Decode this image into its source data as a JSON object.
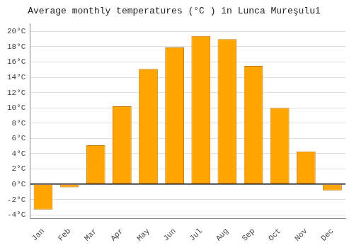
{
  "chart_data": {
    "type": "bar",
    "title": "Average monthly temperatures (°C ) in Lunca Mureşului",
    "categories": [
      "Jan",
      "Feb",
      "Mar",
      "Apr",
      "May",
      "Jun",
      "Jul",
      "Aug",
      "Sep",
      "Oct",
      "Nov",
      "Dec"
    ],
    "values": [
      -3.3,
      -0.4,
      5.1,
      10.2,
      15.1,
      17.9,
      19.4,
      19.0,
      15.5,
      10.0,
      4.3,
      -0.8
    ],
    "color": "#FFA500",
    "ylim": [
      -4.5,
      21
    ],
    "yticks": [
      {
        "value": -4,
        "label": "-4°C"
      },
      {
        "value": -2,
        "label": "-2°C"
      },
      {
        "value": 0,
        "label": "0°C"
      },
      {
        "value": 2,
        "label": "2°C"
      },
      {
        "value": 4,
        "label": "4°C"
      },
      {
        "value": 6,
        "label": "6°C"
      },
      {
        "value": 8,
        "label": "8°C"
      },
      {
        "value": 10,
        "label": "10°C"
      },
      {
        "value": 12,
        "label": "12°C"
      },
      {
        "value": 14,
        "label": "14°C"
      },
      {
        "value": 16,
        "label": "16°C"
      },
      {
        "value": 18,
        "label": "18°C"
      },
      {
        "value": 20,
        "label": "20°C"
      }
    ],
    "grid": true
  }
}
